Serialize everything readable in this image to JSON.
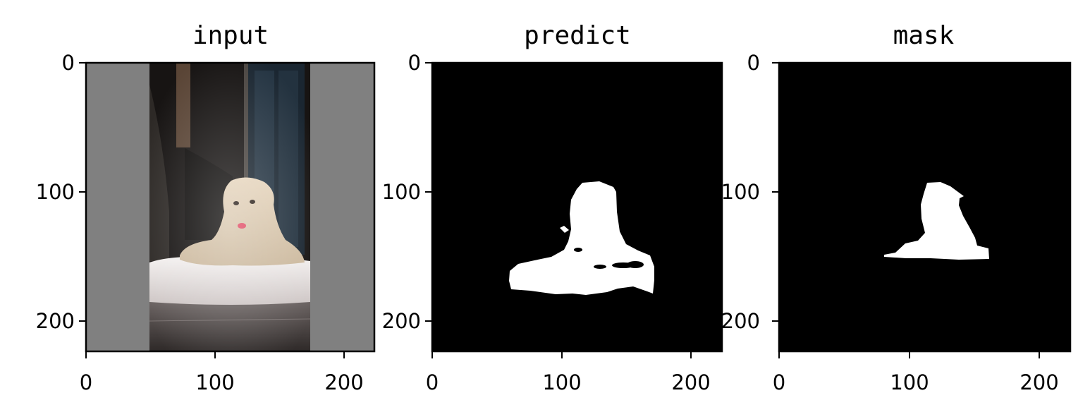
{
  "chart_data": [
    {
      "type": "image",
      "title": "input",
      "xlim": [
        0,
        224
      ],
      "ylim": [
        224,
        0
      ],
      "xticks": [
        0,
        100,
        200
      ],
      "yticks": [
        0,
        100,
        200
      ],
      "content": "photo of a fluffy cream-colored dog lying on a white cushion in a dark room, letterboxed with gray bars on the left and right",
      "padding_color": "#808080",
      "photo_x_range": [
        49,
        174
      ]
    },
    {
      "type": "image",
      "title": "predict",
      "xlim": [
        0,
        224
      ],
      "ylim": [
        224,
        0
      ],
      "xticks": [
        0,
        100,
        200
      ],
      "yticks": [
        0,
        100,
        200
      ],
      "content": "binary segmentation mask, white foreground blob on black background"
    },
    {
      "type": "image",
      "title": "mask",
      "xlim": [
        0,
        224
      ],
      "ylim": [
        224,
        0
      ],
      "xticks": [
        0,
        100,
        200
      ],
      "yticks": [
        0,
        100,
        200
      ],
      "content": "binary ground-truth mask, white dog silhouette on black background"
    }
  ],
  "colors": {
    "background": "#000000",
    "foreground": "#ffffff",
    "padding": "#808080"
  }
}
